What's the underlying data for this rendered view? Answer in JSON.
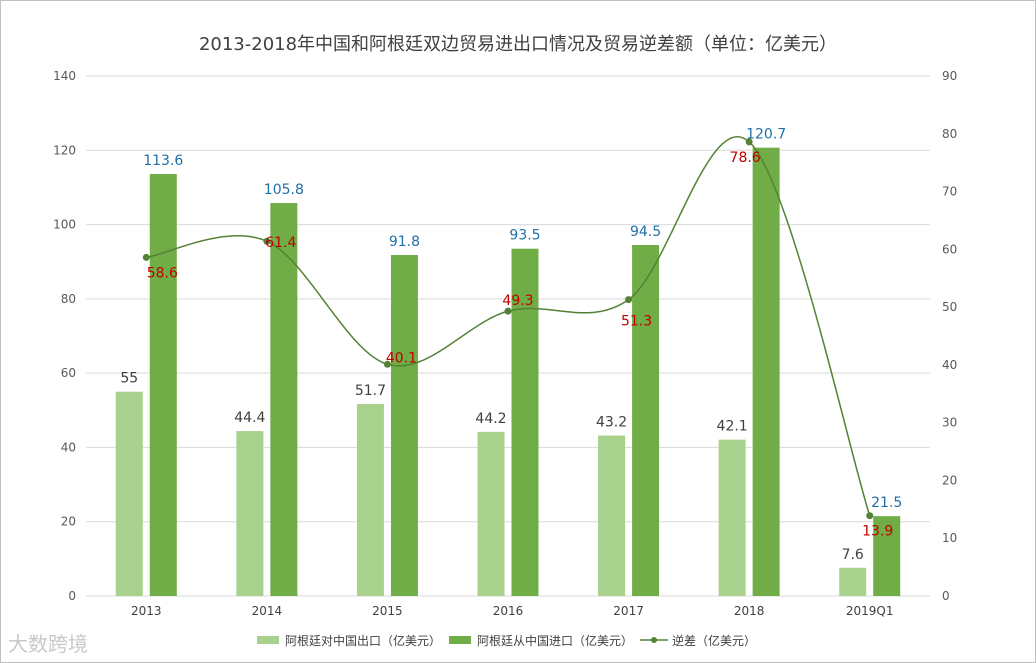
{
  "chart_data": {
    "type": "bar+line",
    "title": "2013-2018年中国和阿根廷双边贸易进出口情况及贸易逆差额（单位：亿美元）",
    "categories": [
      "2013",
      "2014",
      "2015",
      "2016",
      "2017",
      "2018",
      "2019Q1"
    ],
    "series": [
      {
        "name": "阿根廷对中国出口（亿美元）",
        "type": "bar",
        "axis": "left",
        "color": "#a9d18e",
        "values": [
          55,
          44.4,
          51.7,
          44.2,
          43.2,
          42.1,
          7.6
        ]
      },
      {
        "name": "阿根廷从中国进口（亿美元）",
        "type": "bar",
        "axis": "left",
        "color": "#70ad47",
        "values": [
          113.6,
          105.8,
          91.8,
          93.5,
          94.5,
          120.7,
          21.5
        ]
      },
      {
        "name": "逆差（亿美元）",
        "type": "line",
        "axis": "right",
        "color": "#548235",
        "values": [
          58.6,
          61.4,
          40.1,
          49.3,
          51.3,
          78.6,
          13.9
        ]
      }
    ],
    "y_left": {
      "min": 0,
      "max": 140,
      "ticks": [
        "0",
        "20",
        "40",
        "60",
        "80",
        "100",
        "120",
        "140"
      ]
    },
    "y_right": {
      "min": 0,
      "max": 90,
      "ticks": [
        "0",
        "10",
        "20",
        "30",
        "40",
        "50",
        "60",
        "70",
        "80",
        "90"
      ]
    },
    "grid": true,
    "legend_position": "bottom"
  },
  "watermark": "大数跨境"
}
